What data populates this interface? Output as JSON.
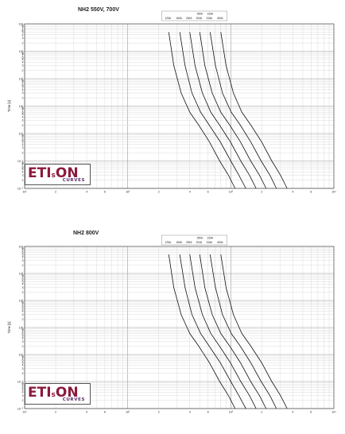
{
  "chart_data": [
    {
      "type": "line",
      "title": "NH2 550V, 700V",
      "xlabel": "",
      "ylabel": "Time [s]",
      "xscale": "log",
      "yscale": "log",
      "xlim": [
        10,
        10000
      ],
      "ylim": [
        0.01,
        10000
      ],
      "x_tick_labels": [
        "10¹",
        "2",
        "4",
        "6",
        "10²",
        "2",
        "4",
        "6",
        "10³",
        "2",
        "4",
        "6",
        "10⁴"
      ],
      "y_tick_labels": [
        "10⁻²",
        "10⁻¹",
        "10⁰",
        "10¹",
        "10²",
        "10³",
        "10⁴"
      ],
      "ratings_top": [
        "250A",
        "315A"
      ],
      "ratings_bottom": [
        "125A",
        "160A",
        "200A",
        "224A",
        "315A",
        "400A"
      ],
      "series": [
        {
          "name": "125A",
          "x": [
            250,
            280,
            330,
            400,
            490,
            620,
            780,
            950,
            1100
          ],
          "y": [
            5000,
            300,
            30,
            6,
            2,
            0.5,
            0.1,
            0.03,
            0.01
          ]
        },
        {
          "name": "160A",
          "x": [
            320,
            360,
            420,
            510,
            620,
            790,
            1000,
            1200,
            1400
          ],
          "y": [
            5000,
            300,
            30,
            6,
            2,
            0.5,
            0.1,
            0.03,
            0.01
          ]
        },
        {
          "name": "200A",
          "x": [
            400,
            450,
            530,
            640,
            780,
            990,
            1250,
            1520,
            1760
          ],
          "y": [
            5000,
            300,
            30,
            6,
            2,
            0.5,
            0.1,
            0.03,
            0.01
          ]
        },
        {
          "name": "250A",
          "x": [
            500,
            560,
            660,
            800,
            980,
            1240,
            1560,
            1900,
            2200
          ],
          "y": [
            5000,
            300,
            30,
            6,
            2,
            0.5,
            0.1,
            0.03,
            0.01
          ]
        },
        {
          "name": "315A",
          "x": [
            630,
            710,
            830,
            1010,
            1240,
            1560,
            1970,
            2400,
            2770
          ],
          "y": [
            5000,
            300,
            30,
            6,
            2,
            0.5,
            0.1,
            0.03,
            0.01
          ]
        },
        {
          "name": "400A",
          "x": [
            800,
            900,
            1060,
            1280,
            1570,
            1990,
            2500,
            3040,
            3520
          ],
          "y": [
            5000,
            300,
            30,
            6,
            2,
            0.5,
            0.1,
            0.03,
            0.01
          ]
        }
      ]
    },
    {
      "type": "line",
      "title": "NH2 800V",
      "xlabel": "",
      "ylabel": "Time [s]",
      "xscale": "log",
      "yscale": "log",
      "xlim": [
        10,
        10000
      ],
      "ylim": [
        0.01,
        10000
      ],
      "x_tick_labels": [
        "10¹",
        "2",
        "4",
        "6",
        "10²",
        "2",
        "4",
        "6",
        "10³",
        "2",
        "4",
        "6",
        "10⁴"
      ],
      "y_tick_labels": [
        "10⁻²",
        "10⁻¹",
        "10⁰",
        "10¹",
        "10²",
        "10³",
        "10⁴"
      ],
      "ratings_top": [
        "250A",
        "315A"
      ],
      "ratings_bottom": [
        "125A",
        "160A",
        "200A",
        "224A",
        "315A",
        "400A"
      ],
      "series": [
        {
          "name": "125A",
          "x": [
            250,
            280,
            330,
            400,
            490,
            620,
            780,
            950,
            1100
          ],
          "y": [
            5000,
            300,
            30,
            6,
            2,
            0.5,
            0.1,
            0.03,
            0.01
          ]
        },
        {
          "name": "160A",
          "x": [
            320,
            360,
            420,
            510,
            620,
            790,
            1000,
            1200,
            1400
          ],
          "y": [
            5000,
            300,
            30,
            6,
            2,
            0.5,
            0.1,
            0.03,
            0.01
          ]
        },
        {
          "name": "200A",
          "x": [
            400,
            450,
            530,
            640,
            780,
            990,
            1250,
            1520,
            1760
          ],
          "y": [
            5000,
            300,
            30,
            6,
            2,
            0.5,
            0.1,
            0.03,
            0.01
          ]
        },
        {
          "name": "250A",
          "x": [
            500,
            560,
            660,
            800,
            980,
            1240,
            1560,
            1900,
            2200
          ],
          "y": [
            5000,
            300,
            30,
            6,
            2,
            0.5,
            0.1,
            0.03,
            0.01
          ]
        },
        {
          "name": "315A",
          "x": [
            630,
            710,
            830,
            1010,
            1240,
            1560,
            1970,
            2400,
            2770
          ],
          "y": [
            5000,
            300,
            30,
            6,
            2,
            0.5,
            0.1,
            0.03,
            0.01
          ]
        },
        {
          "name": "400A",
          "x": [
            800,
            900,
            1060,
            1280,
            1570,
            1990,
            2500,
            3040,
            3520
          ],
          "y": [
            5000,
            300,
            30,
            6,
            2,
            0.5,
            0.1,
            0.03,
            0.01
          ]
        }
      ]
    }
  ],
  "logo": {
    "main_text": "ETIsON",
    "sub_text": "CURVES",
    "color": "#8b1a3c",
    "sub_color": "#5a2a66"
  }
}
